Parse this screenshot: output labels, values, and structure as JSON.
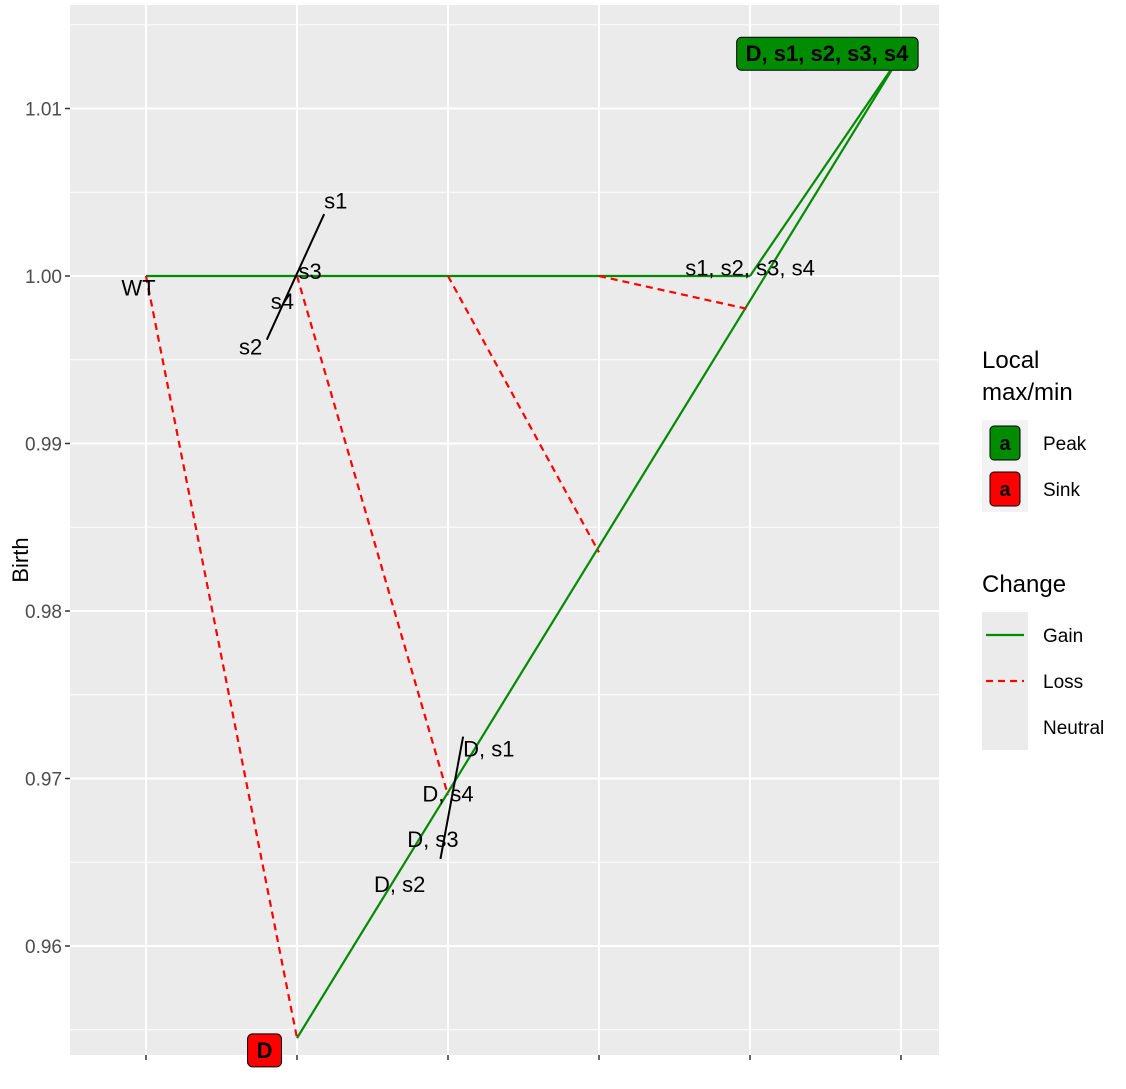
{
  "chart_data": {
    "type": "line",
    "ylabel": "Birth",
    "xlabel": "",
    "ylim": [
      0.954,
      1.016
    ],
    "y_ticks": [
      {
        "value": 0.96,
        "label": "0.96"
      },
      {
        "value": 0.97,
        "label": "0.97"
      },
      {
        "value": 0.98,
        "label": "0.98"
      },
      {
        "value": 0.99,
        "label": "0.99"
      },
      {
        "value": 1.0,
        "label": "1.00"
      },
      {
        "value": 1.01,
        "label": "1.01"
      }
    ],
    "x_levels": 6,
    "grid": true,
    "nodes": [
      {
        "id": "WT",
        "x": 1,
        "y": 1.0
      },
      {
        "id": "D",
        "x": 2,
        "y": 0.9545
      },
      {
        "id": "s1",
        "x": 2,
        "y": 1.0
      },
      {
        "id": "s2",
        "x": 2,
        "y": 1.0
      },
      {
        "id": "s3",
        "x": 2,
        "y": 1.0
      },
      {
        "id": "s4",
        "x": 2,
        "y": 1.0
      },
      {
        "id": "D, s1",
        "x": 3,
        "y": 0.969
      },
      {
        "id": "D, s2",
        "x": 3,
        "y": 0.969
      },
      {
        "id": "D, s3",
        "x": 3,
        "y": 0.969
      },
      {
        "id": "D, s4",
        "x": 3,
        "y": 0.969
      },
      {
        "id": "2-mut",
        "x": 3,
        "y": 1.0
      },
      {
        "id": "3-mut",
        "x": 4,
        "y": 1.0
      },
      {
        "id": "D, 3-mut",
        "x": 4,
        "y": 0.9835
      },
      {
        "id": "s1, s2, s3, s4",
        "x": 5,
        "y": 1.0
      },
      {
        "id": "D, 3mut-b",
        "x": 5,
        "y": 0.998
      },
      {
        "id": "D, s1, s2, s3, s4",
        "x": 6,
        "y": 1.0132
      }
    ],
    "edges": [
      {
        "from": [
          1,
          1.0
        ],
        "to": [
          5,
          1.0
        ],
        "type": "Gain"
      },
      {
        "from": [
          5,
          1.0
        ],
        "to": [
          6,
          1.0132
        ],
        "type": "Gain"
      },
      {
        "from": [
          2,
          0.9545
        ],
        "to": [
          6,
          1.0132
        ],
        "type": "Gain"
      },
      {
        "from": [
          1,
          1.0
        ],
        "to": [
          2,
          0.9545
        ],
        "type": "Loss"
      },
      {
        "from": [
          2,
          1.0
        ],
        "to": [
          3,
          0.969
        ],
        "type": "Loss"
      },
      {
        "from": [
          3,
          1.0
        ],
        "to": [
          4,
          0.9835
        ],
        "type": "Loss"
      },
      {
        "from": [
          4,
          1.0
        ],
        "to": [
          5,
          0.998
        ],
        "type": "Loss"
      }
    ],
    "black_segments": [
      {
        "from": [
          1.8,
          0.9962
        ],
        "to": [
          2.18,
          1.0037
        ]
      },
      {
        "from": [
          2.95,
          0.9652
        ],
        "to": [
          3.1,
          0.9725
        ]
      }
    ],
    "labels": [
      {
        "text": "WT",
        "x": 0.95,
        "y": 0.9993,
        "anchor": "middle"
      },
      {
        "text": "s1",
        "x": 2.18,
        "y": 1.0045,
        "anchor": "start"
      },
      {
        "text": "s3",
        "x": 2.01,
        "y": 1.0003,
        "anchor": "start"
      },
      {
        "text": "s4",
        "x": 1.98,
        "y": 0.9985,
        "anchor": "end"
      },
      {
        "text": "s2",
        "x": 1.77,
        "y": 0.9958,
        "anchor": "end"
      },
      {
        "text": "s1, s2, s3, s4",
        "x": 5.0,
        "y": 1.0005,
        "anchor": "middle"
      },
      {
        "text": "D, s1",
        "x": 3.1,
        "y": 0.9718,
        "anchor": "start"
      },
      {
        "text": "D, s4",
        "x": 3.0,
        "y": 0.9691,
        "anchor": "middle"
      },
      {
        "text": "D, s3",
        "x": 2.9,
        "y": 0.9664,
        "anchor": "middle"
      },
      {
        "text": "D, s2",
        "x": 2.68,
        "y": 0.9637,
        "anchor": "middle"
      }
    ],
    "badges": [
      {
        "text": "D",
        "x": 1.785,
        "y": 0.9538,
        "kind": "Sink"
      },
      {
        "text": "D, s1, s2, s3, s4",
        "x": 5.51,
        "y": 1.0133,
        "kind": "Peak"
      }
    ],
    "legend": {
      "position": "right",
      "local_title": [
        "Local",
        "max/min"
      ],
      "local_items": [
        {
          "key": "a",
          "label": "Peak",
          "color": "#008b00"
        },
        {
          "key": "a",
          "label": "Sink",
          "color": "#ff0000"
        }
      ],
      "change_title": "Change",
      "change_items": [
        {
          "label": "Gain",
          "color": "#008b00",
          "style": "solid"
        },
        {
          "label": "Loss",
          "color": "#ff0000",
          "style": "dashed"
        },
        {
          "label": "Neutral",
          "color": "",
          "style": "none"
        }
      ]
    },
    "colors": {
      "panel": "#ebebeb",
      "grid": "#ffffff",
      "gain": "#008b00",
      "loss": "#ff0000",
      "peak": "#008b00",
      "sink": "#ff0000"
    }
  }
}
